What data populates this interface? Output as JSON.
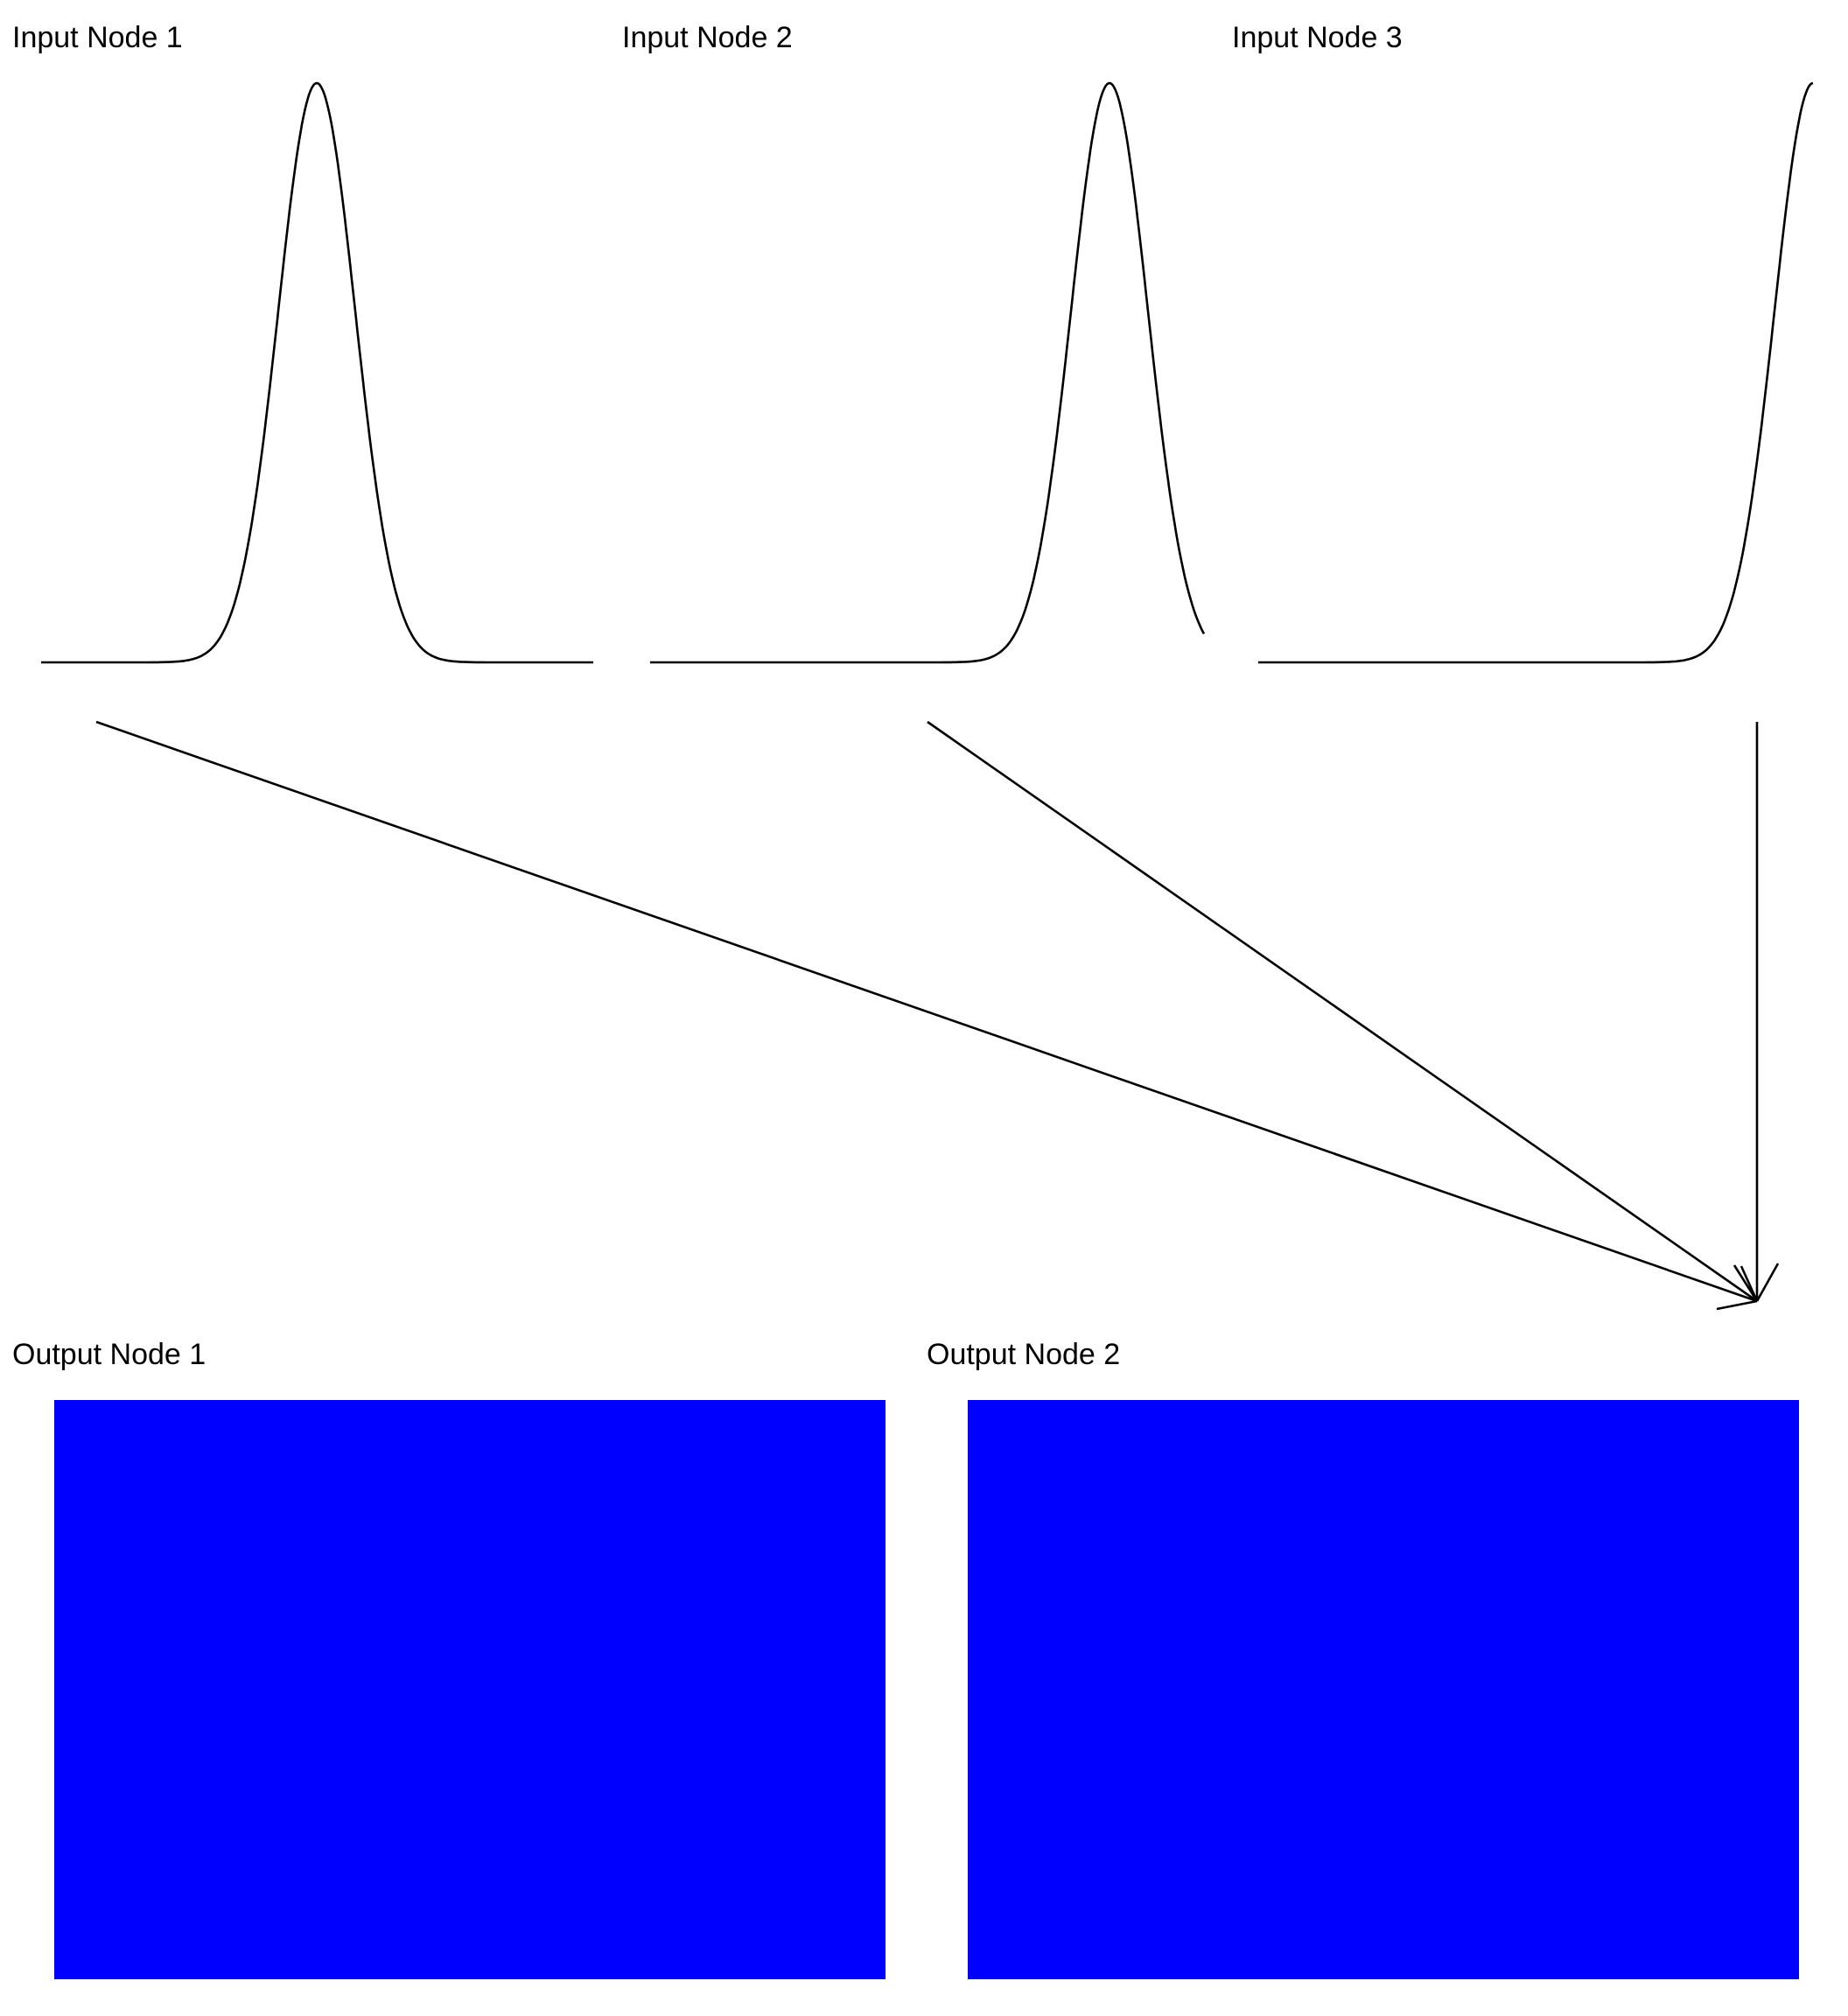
{
  "input_nodes": [
    {
      "label": "Input Node 1"
    },
    {
      "label": "Input Node 2"
    },
    {
      "label": "Input Node 3"
    }
  ],
  "output_nodes": [
    {
      "label": "Output Node 1",
      "fill": "#0000FF"
    },
    {
      "label": "Output Node 2",
      "fill": "#0000FF"
    }
  ],
  "colors": {
    "curve": "#000000",
    "edge": "#000000",
    "output_fill": "#0000FF",
    "background": "#FFFFFF"
  }
}
